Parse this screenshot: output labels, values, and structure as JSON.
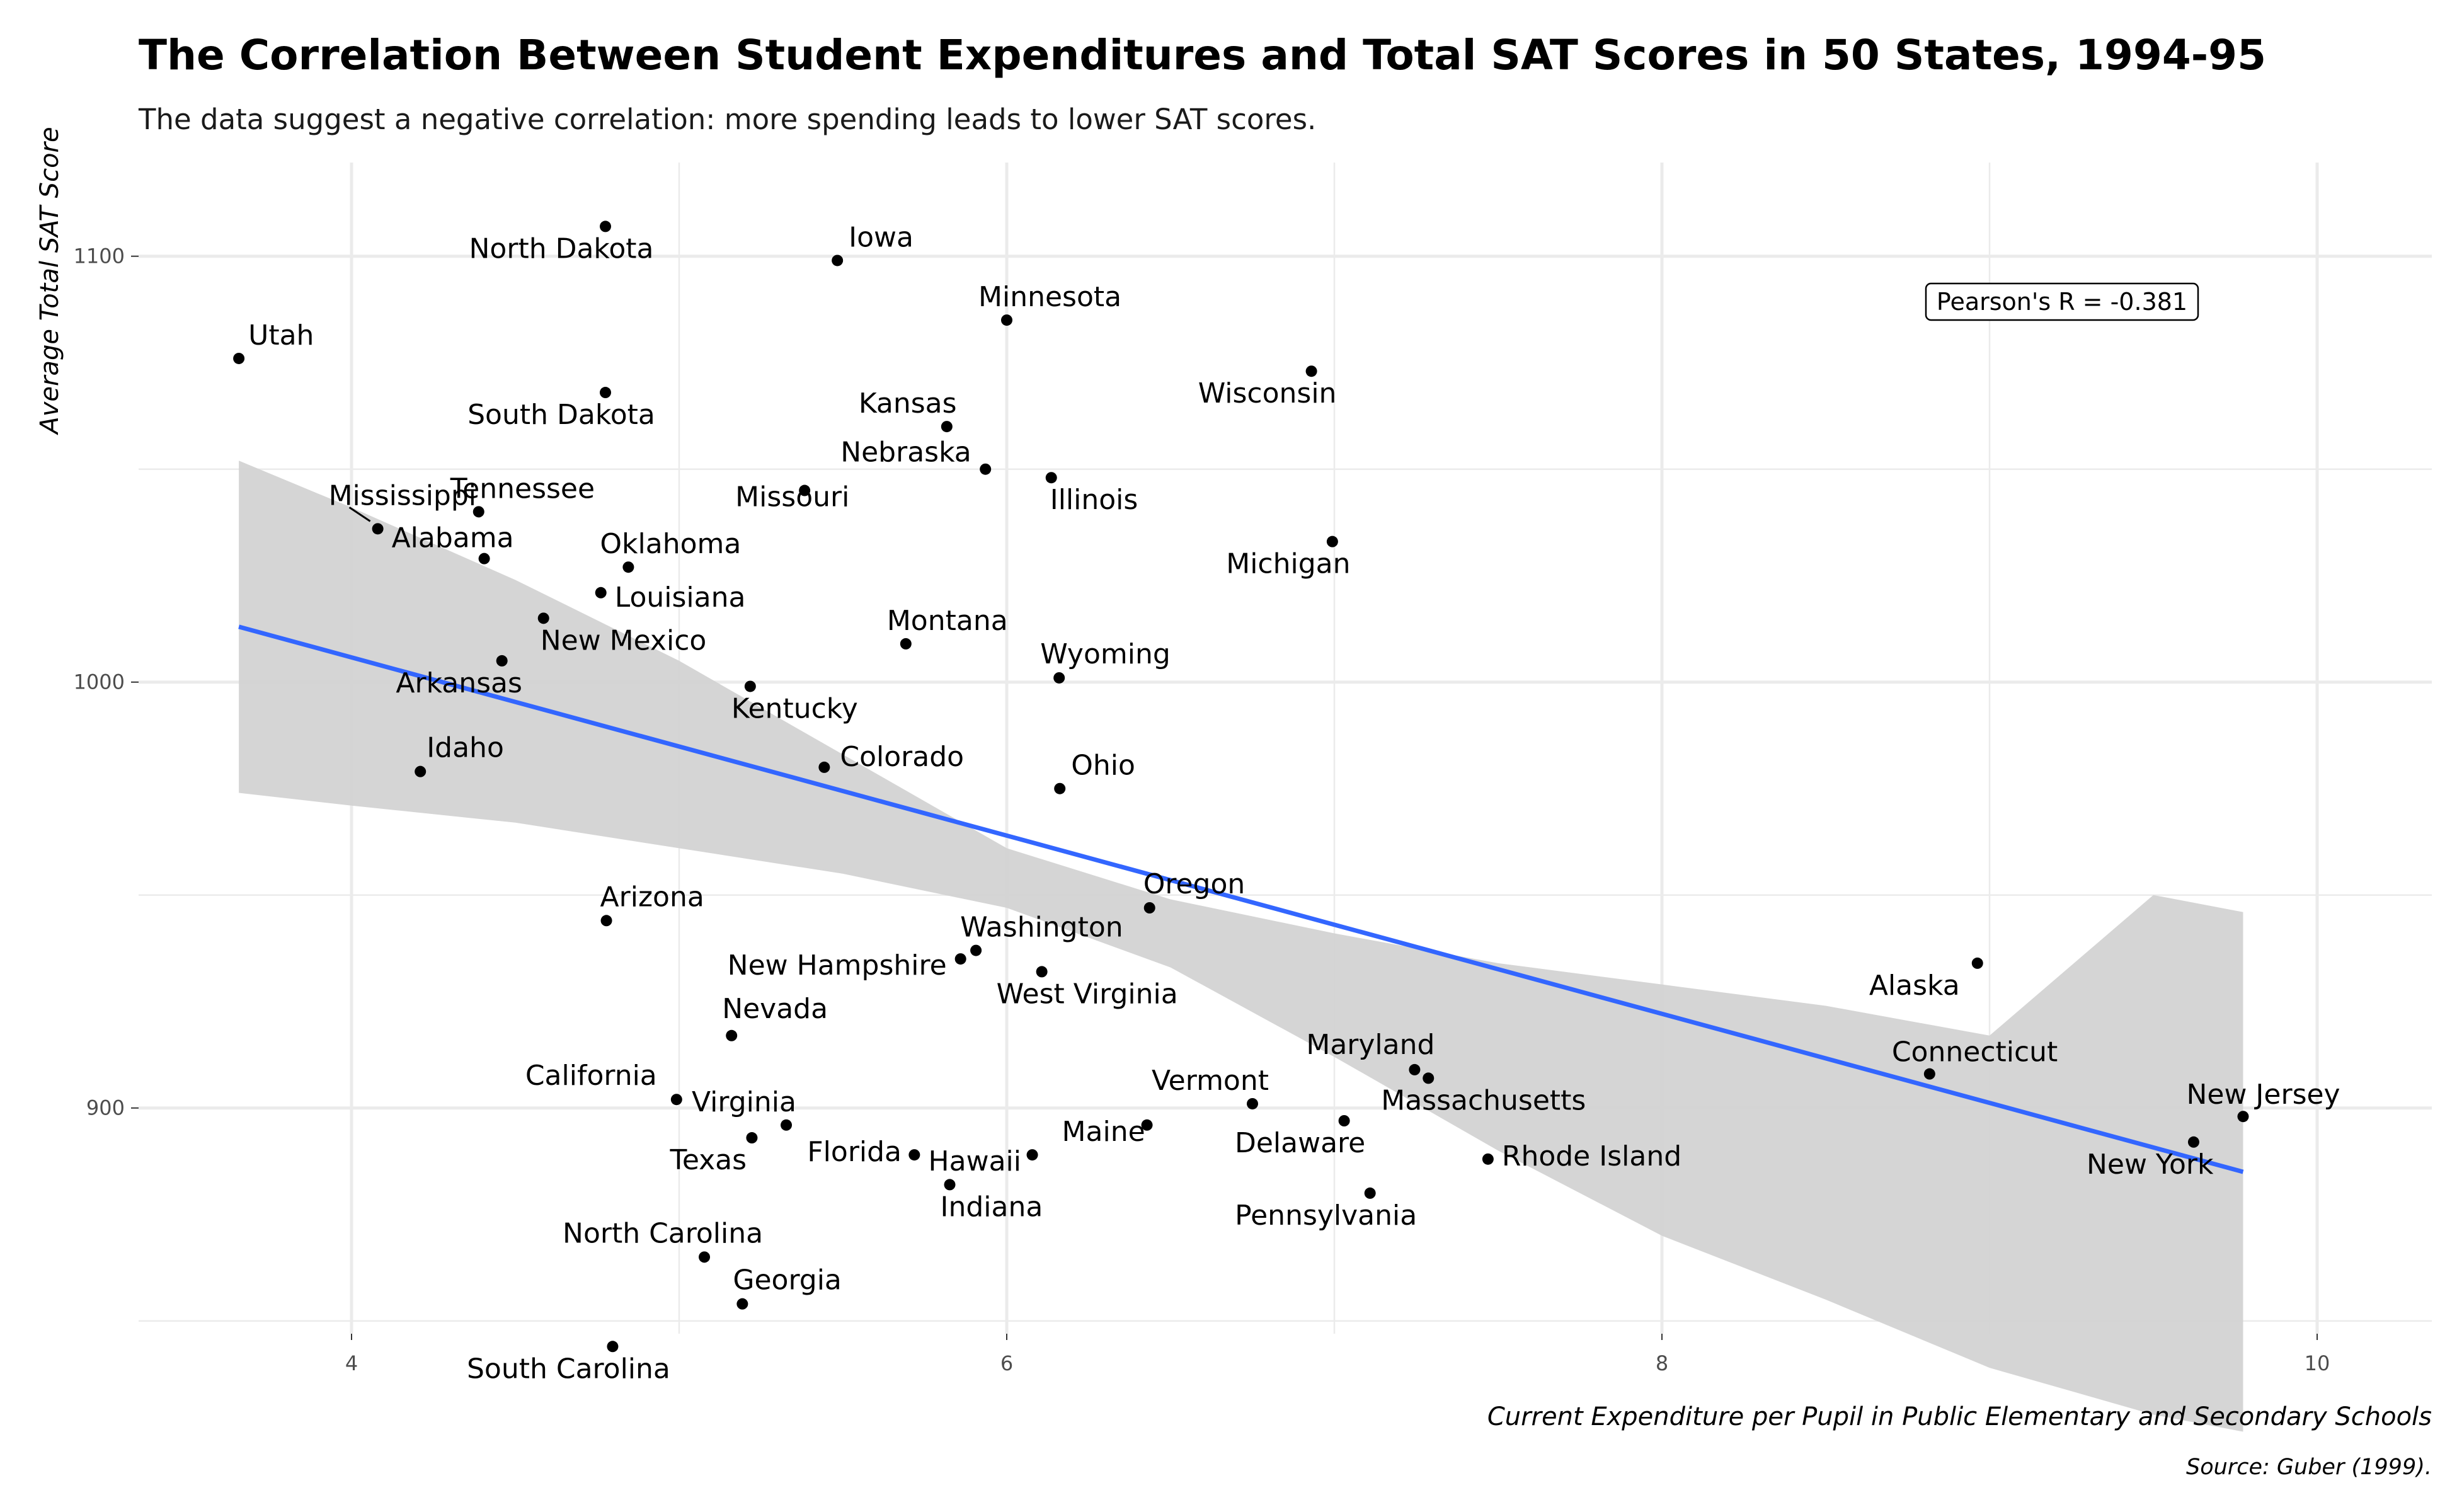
{
  "chart_data": {
    "type": "scatter",
    "title": "The Correlation Between Student Expenditures and Total SAT Scores in 50 States, 1994-95",
    "subtitle": "The data suggest a negative correlation: more spending leads to lower SAT scores.",
    "xlabel": "Current Expenditure per Pupil in Public Elementary and Secondary Schools",
    "ylabel": "Average Total SAT Score",
    "caption": "Source: Guber (1999).",
    "annotation": "Pearson's R =  -0.381",
    "xlim": [
      3.35,
      10.35
    ],
    "ylim": [
      847,
      1122
    ],
    "x_ticks": [
      4,
      6,
      8,
      10
    ],
    "y_ticks": [
      900,
      1000,
      1100
    ],
    "grid": true,
    "points": [
      {
        "state": "Alabama",
        "x": 4.405,
        "y": 1029
      },
      {
        "state": "Alaska",
        "x": 8.963,
        "y": 934
      },
      {
        "state": "Arizona",
        "x": 4.778,
        "y": 944
      },
      {
        "state": "Arkansas",
        "x": 4.459,
        "y": 1005
      },
      {
        "state": "California",
        "x": 4.992,
        "y": 902
      },
      {
        "state": "Colorado",
        "x": 5.443,
        "y": 980
      },
      {
        "state": "Connecticut",
        "x": 8.817,
        "y": 908
      },
      {
        "state": "Delaware",
        "x": 7.03,
        "y": 897
      },
      {
        "state": "Florida",
        "x": 5.718,
        "y": 889
      },
      {
        "state": "Georgia",
        "x": 5.193,
        "y": 854
      },
      {
        "state": "Hawaii",
        "x": 6.078,
        "y": 889
      },
      {
        "state": "Idaho",
        "x": 4.21,
        "y": 979
      },
      {
        "state": "Illinois",
        "x": 6.136,
        "y": 1048
      },
      {
        "state": "Indiana",
        "x": 5.826,
        "y": 882
      },
      {
        "state": "Iowa",
        "x": 5.483,
        "y": 1099
      },
      {
        "state": "Kansas",
        "x": 5.817,
        "y": 1060
      },
      {
        "state": "Kentucky",
        "x": 5.217,
        "y": 999
      },
      {
        "state": "Louisiana",
        "x": 4.761,
        "y": 1021
      },
      {
        "state": "Maine",
        "x": 6.428,
        "y": 896
      },
      {
        "state": "Maryland",
        "x": 7.245,
        "y": 909
      },
      {
        "state": "Massachusetts",
        "x": 7.287,
        "y": 907
      },
      {
        "state": "Michigan",
        "x": 6.994,
        "y": 1033
      },
      {
        "state": "Minnesota",
        "x": 6.0,
        "y": 1085
      },
      {
        "state": "Mississippi",
        "x": 4.08,
        "y": 1036
      },
      {
        "state": "Missouri",
        "x": 5.383,
        "y": 1045
      },
      {
        "state": "Montana",
        "x": 5.692,
        "y": 1009
      },
      {
        "state": "Nebraska",
        "x": 5.935,
        "y": 1050
      },
      {
        "state": "Nevada",
        "x": 5.16,
        "y": 917
      },
      {
        "state": "New Hampshire",
        "x": 5.859,
        "y": 935
      },
      {
        "state": "New Jersey",
        "x": 9.774,
        "y": 898
      },
      {
        "state": "New Mexico",
        "x": 4.586,
        "y": 1015
      },
      {
        "state": "New York",
        "x": 9.623,
        "y": 892
      },
      {
        "state": "North Carolina",
        "x": 5.077,
        "y": 865
      },
      {
        "state": "North Dakota",
        "x": 4.775,
        "y": 1107
      },
      {
        "state": "Ohio",
        "x": 6.162,
        "y": 975
      },
      {
        "state": "Oklahoma",
        "x": 4.845,
        "y": 1027
      },
      {
        "state": "Oregon",
        "x": 6.436,
        "y": 947
      },
      {
        "state": "Pennsylvania",
        "x": 7.109,
        "y": 880
      },
      {
        "state": "Rhode Island",
        "x": 7.469,
        "y": 888
      },
      {
        "state": "South Carolina",
        "x": 4.797,
        "y": 844
      },
      {
        "state": "South Dakota",
        "x": 4.775,
        "y": 1068
      },
      {
        "state": "Tennessee",
        "x": 4.388,
        "y": 1040
      },
      {
        "state": "Texas",
        "x": 5.222,
        "y": 893
      },
      {
        "state": "Utah",
        "x": 3.656,
        "y": 1076
      },
      {
        "state": "Vermont",
        "x": 6.75,
        "y": 901
      },
      {
        "state": "Virginia",
        "x": 5.327,
        "y": 896
      },
      {
        "state": "Washington",
        "x": 5.906,
        "y": 937
      },
      {
        "state": "West Virginia",
        "x": 6.107,
        "y": 932
      },
      {
        "state": "Wisconsin",
        "x": 6.93,
        "y": 1073
      },
      {
        "state": "Wyoming",
        "x": 6.16,
        "y": 1001
      }
    ],
    "regression": {
      "x_start": 3.656,
      "y_start": 1013,
      "x_end": 9.774,
      "y_end": 885
    },
    "confidence_band": {
      "x": [
        3.656,
        4.0,
        4.5,
        5.0,
        5.5,
        6.0,
        6.5,
        7.0,
        7.5,
        8.0,
        8.5,
        9.0,
        9.5,
        9.774
      ],
      "upper": [
        1052,
        1041,
        1024,
        1005,
        983,
        961,
        949,
        941,
        934,
        929,
        924,
        917,
        950,
        946
      ],
      "lower": [
        974,
        971,
        967,
        961,
        955,
        947,
        933,
        912,
        890,
        870,
        855,
        839,
        828,
        824
      ]
    },
    "colors": {
      "points": "#000000",
      "regression": "#3366ff",
      "band": "#d3d3d3",
      "grid": "#ebebeb"
    }
  }
}
